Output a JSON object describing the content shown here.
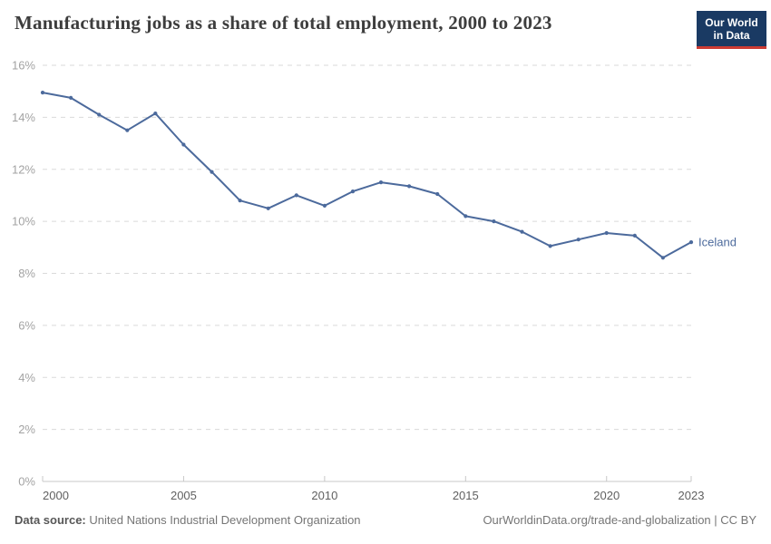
{
  "header": {
    "logo": {
      "line1": "Our World",
      "line2": "in Data"
    }
  },
  "footer": {
    "source_label": "Data source:",
    "source": "United Nations Industrial Development Organization",
    "attribution": "OurWorldinData.org/trade-and-globalization | CC BY"
  },
  "colors": {
    "line": "#4C6A9C",
    "grid": "#dadada",
    "axis": "#c8c8c8",
    "y_tick_label": "#a3a3a3",
    "x_tick_label": "#606060",
    "title": "#3d3d3d",
    "footer": "#757575",
    "logo_bg": "#1a3a63",
    "logo_red": "#cc3b33"
  },
  "chart_data": {
    "type": "line",
    "title": "Manufacturing jobs as a share of total employment, 2000 to 2023",
    "xlabel": "",
    "ylabel": "",
    "xlim": [
      2000,
      2023
    ],
    "ylim": [
      0,
      16
    ],
    "xticks": [
      2000,
      2005,
      2010,
      2015,
      2020,
      2023
    ],
    "yticks": [
      0,
      2,
      4,
      6,
      8,
      10,
      12,
      14,
      16
    ],
    "ytick_suffix": "%",
    "grid": "horizontal-dashed",
    "legend": "end-of-line-label",
    "series": [
      {
        "name": "Iceland",
        "color": "#4C6A9C",
        "x": [
          2000,
          2001,
          2002,
          2003,
          2004,
          2005,
          2006,
          2007,
          2008,
          2009,
          2010,
          2011,
          2012,
          2013,
          2014,
          2015,
          2016,
          2017,
          2018,
          2019,
          2020,
          2021,
          2022,
          2023
        ],
        "values": [
          14.95,
          14.75,
          14.1,
          13.5,
          14.15,
          12.95,
          11.9,
          10.8,
          10.5,
          11.0,
          10.6,
          11.15,
          11.5,
          11.35,
          11.05,
          10.2,
          10.0,
          9.6,
          9.05,
          9.3,
          9.55,
          9.45,
          8.6,
          9.2
        ]
      }
    ]
  }
}
